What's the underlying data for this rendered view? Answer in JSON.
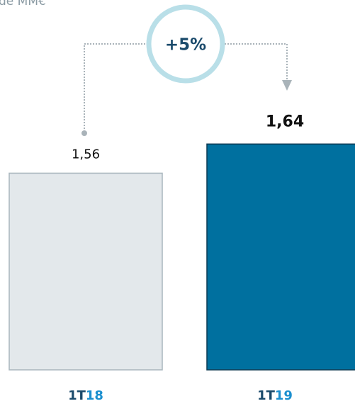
{
  "chart_data": {
    "type": "bar",
    "title": "de MM€",
    "categories": [
      "1T18",
      "1T19"
    ],
    "values": [
      1.56,
      1.64
    ],
    "value_labels": [
      "1,56",
      "1,64"
    ],
    "colors": [
      "#e3e8eb",
      "#00709f"
    ],
    "ylim": [
      1.02,
      1.66
    ],
    "annotation": "+5%"
  }
}
